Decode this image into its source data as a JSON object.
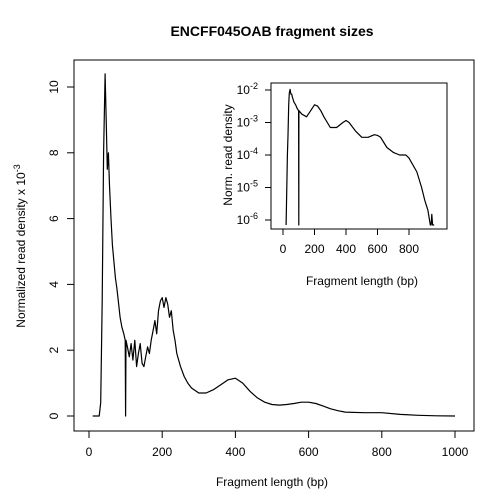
{
  "chart_data": [
    {
      "type": "line",
      "title": "ENCFF045OAB fragment sizes",
      "xlabel": "Fragment length (bp)",
      "ylabel": "Normalized read density x 10",
      "ylabel_exponent": "-3",
      "xlim": [
        0,
        1010
      ],
      "ylim": [
        -0.4,
        10.8
      ],
      "xticks": [
        0,
        200,
        400,
        600,
        800,
        1000
      ],
      "yticks": [
        0,
        2,
        4,
        6,
        8,
        10
      ],
      "grid": false,
      "series": [
        {
          "x": [
            10,
            28,
            32,
            36,
            40,
            44,
            47,
            50,
            53,
            56,
            60,
            64,
            68,
            72,
            76,
            80,
            85,
            90,
            95,
            99,
            100,
            101,
            105,
            110,
            115,
            120,
            125,
            130,
            135,
            140,
            145,
            150,
            155,
            160,
            165,
            170,
            175,
            180,
            185,
            190,
            195,
            200,
            205,
            210,
            215,
            220,
            225,
            230,
            235,
            240,
            250,
            260,
            270,
            280,
            300,
            320,
            340,
            360,
            380,
            400,
            420,
            440,
            460,
            480,
            500,
            520,
            540,
            560,
            580,
            600,
            620,
            640,
            660,
            680,
            700,
            750,
            800,
            850,
            900,
            950,
            1000
          ],
          "values": [
            0,
            0,
            0.4,
            3.5,
            8.0,
            10.4,
            9.0,
            7.5,
            8.0,
            7.0,
            6.0,
            5.2,
            4.7,
            4.2,
            3.9,
            3.5,
            3.0,
            2.7,
            2.5,
            2.3,
            0.0,
            2.3,
            2.1,
            1.8,
            2.2,
            1.7,
            2.3,
            1.5,
            1.9,
            2.2,
            1.6,
            1.5,
            1.8,
            2.1,
            1.9,
            2.3,
            2.6,
            2.9,
            2.5,
            3.2,
            3.5,
            3.6,
            3.3,
            3.6,
            3.4,
            3.0,
            3.2,
            2.6,
            2.3,
            1.9,
            1.5,
            1.2,
            1.0,
            0.85,
            0.7,
            0.7,
            0.8,
            0.95,
            1.1,
            1.15,
            1.0,
            0.75,
            0.55,
            0.42,
            0.35,
            0.33,
            0.35,
            0.38,
            0.42,
            0.42,
            0.38,
            0.3,
            0.22,
            0.16,
            0.12,
            0.1,
            0.1,
            0.05,
            0.02,
            0.005,
            0.0
          ]
        }
      ]
    },
    {
      "type": "line",
      "title": "",
      "xlabel": "Fragment length (bp)",
      "ylabel": "Norm. read density",
      "xlim": [
        -20,
        1010
      ],
      "ylim": [
        5e-07,
        0.012
      ],
      "log_y": true,
      "xticks": [
        0,
        200,
        400,
        600,
        800
      ],
      "yticks": [
        1e-06,
        1e-05,
        0.0001,
        0.001,
        0.01
      ],
      "ytick_labels": [
        "10",
        "10",
        "10",
        "10",
        "10"
      ],
      "ytick_exponents": [
        "-6",
        "-5",
        "-4",
        "-3",
        "-2"
      ],
      "grid": false,
      "series": [
        {
          "x": [
            20,
            28,
            32,
            36,
            40,
            45,
            50,
            55,
            60,
            70,
            80,
            90,
            99,
            100,
            101,
            120,
            150,
            180,
            200,
            220,
            240,
            260,
            300,
            340,
            380,
            400,
            420,
            460,
            500,
            540,
            580,
            600,
            620,
            660,
            700,
            740,
            780,
            800,
            850,
            880,
            900,
            920,
            930,
            935,
            940,
            945,
            950,
            960
          ],
          "values": [
            7e-07,
            0.0001,
            0.0004,
            0.0035,
            0.008,
            0.0104,
            0.0075,
            0.0075,
            0.006,
            0.0042,
            0.0035,
            0.0027,
            0.0023,
            7e-07,
            0.0023,
            0.0018,
            0.0015,
            0.0025,
            0.0035,
            0.0032,
            0.0023,
            0.0015,
            0.0007,
            0.0007,
            0.001,
            0.00115,
            0.001,
            0.00055,
            0.00035,
            0.00035,
            0.00042,
            0.0004,
            0.00035,
            0.00017,
            0.00012,
            0.0001,
            0.0001,
            8e-05,
            3e-05,
            1e-05,
            4e-06,
            2e-06,
            1e-06,
            7e-07,
            7e-07,
            1.5e-06,
            7e-07,
            7e-07
          ]
        }
      ]
    }
  ]
}
